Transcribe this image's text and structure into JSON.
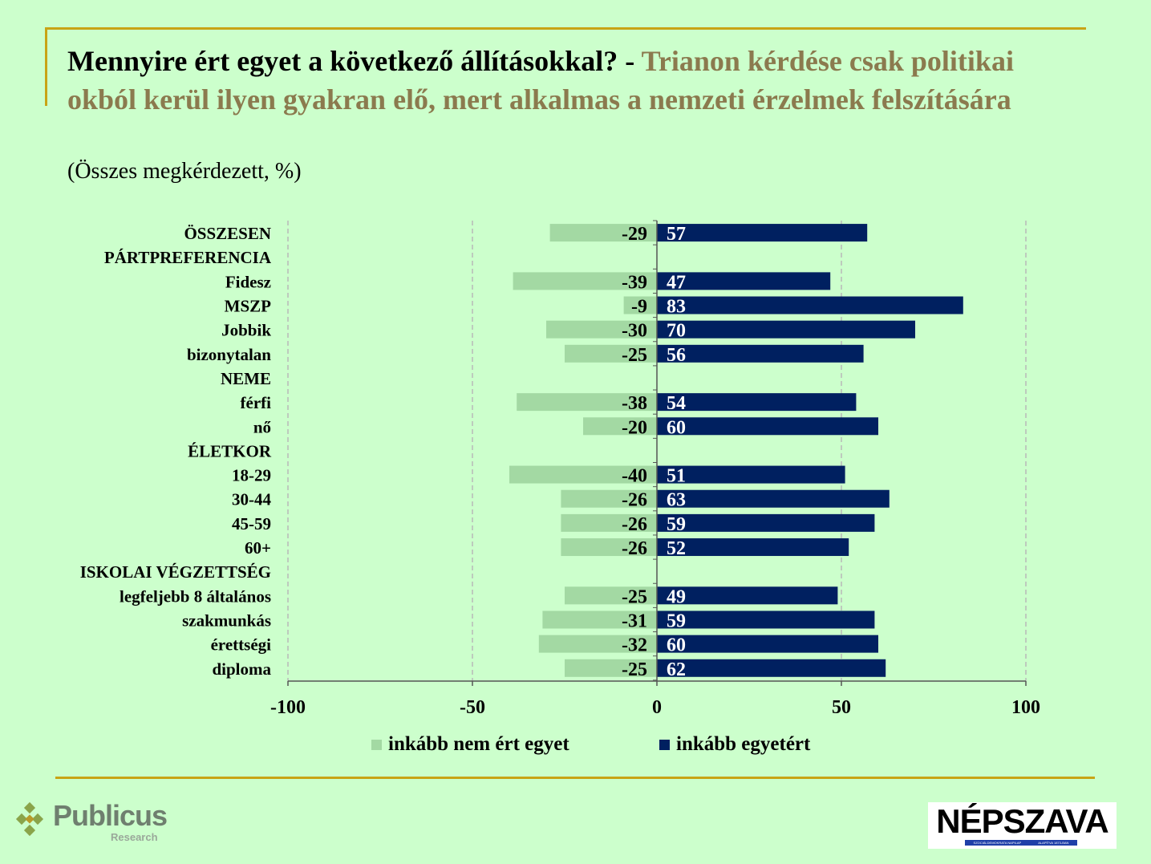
{
  "title": {
    "question": "Mennyire ért egyet a következő állításokkal? - ",
    "statement": "Trianon kérdése csak politikai okból kerül ilyen gyakran elő, mert alkalmas a nemzeti érzelmek felszítására",
    "subtitle": "(Összes megkérdezett, %)"
  },
  "colors": {
    "background": "#ccffcc",
    "disagree": "#a3d9a3",
    "agree": "#002060",
    "accent": "#c8a415",
    "statement": "#8b7a4e"
  },
  "chart_data": {
    "type": "bar",
    "orientation": "horizontal-diverging",
    "categories": [
      "ÖSSZESEN",
      "PÁRTPREFERENCIA",
      "Fidesz",
      "MSZP",
      "Jobbik",
      "bizonytalan",
      "NEME",
      "férfi",
      "nő",
      "ÉLETKOR",
      "18-29",
      "30-44",
      "45-59",
      "60+",
      "ISKOLAI VÉGZETTSÉG",
      "legfeljebb 8 általános",
      "szakmunkás",
      "érettségi",
      "diploma"
    ],
    "series": [
      {
        "name": "inkább nem ért egyet",
        "values": [
          -29,
          null,
          -39,
          -9,
          -30,
          -25,
          null,
          -38,
          -20,
          null,
          -40,
          -26,
          -26,
          -26,
          null,
          -25,
          -31,
          -32,
          -25
        ]
      },
      {
        "name": "inkább egyetért",
        "values": [
          57,
          null,
          47,
          83,
          70,
          56,
          null,
          54,
          60,
          null,
          51,
          63,
          59,
          52,
          null,
          49,
          59,
          60,
          62
        ]
      }
    ],
    "xlim": [
      -100,
      100
    ],
    "xticks": [
      "-100",
      "-50",
      "0",
      "50",
      "100"
    ],
    "grid": "vertical dashed",
    "legend": "bottom"
  },
  "logos": {
    "publicus": "Publicus",
    "publicus_sub": "Research",
    "nepszava": "NÉPSZAVA",
    "nepszava_tag_left": "SZOCIÁLDEMOKRATA NAPILAP",
    "nepszava_tag_right": "ALAPÍTVA 1873-BAN"
  }
}
